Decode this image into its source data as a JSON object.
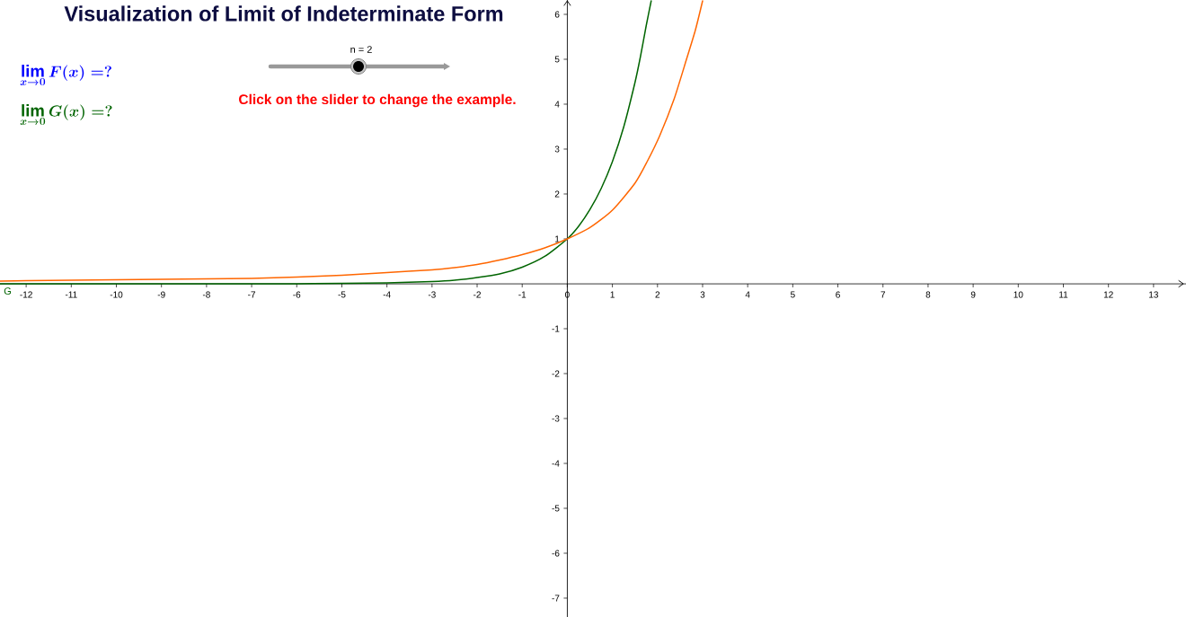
{
  "chart_data": {
    "type": "line",
    "title": "Visualization of Limit of Indeterminate Form",
    "annotations": [
      "\\lim_{x\\to 0} F(x) = ?",
      "\\lim_{x\\to 0} G(x) = ?",
      "n = 2",
      "Click on the slider to change the example."
    ],
    "xlim": [
      -12.58,
      13.72
    ],
    "ylim": [
      -7.42,
      6.32
    ],
    "xticks": [
      -12,
      -11,
      -10,
      -9,
      -8,
      -7,
      -6,
      -5,
      -4,
      -3,
      -2,
      -1,
      0,
      1,
      2,
      3,
      4,
      5,
      6,
      7,
      8,
      9,
      10,
      11,
      12,
      13
    ],
    "yticks": [
      -7,
      -6,
      -5,
      -4,
      -3,
      -2,
      -1,
      1,
      2,
      3,
      4,
      5,
      6
    ],
    "marker": "none",
    "line_style": "solid",
    "series": [
      {
        "name": "G",
        "color": "#006400",
        "x": [
          -12.58,
          -8,
          -6,
          -5,
          -4,
          -3,
          -2.5,
          -2,
          -1.5,
          -1,
          -0.5,
          0,
          0.25,
          0.5,
          0.75,
          1,
          1.25,
          1.5,
          1.62,
          1.75,
          1.86
        ],
        "values": [
          0,
          0,
          0,
          0.01,
          0.02,
          0.05,
          0.08,
          0.14,
          0.22,
          0.37,
          0.61,
          1,
          1.28,
          1.65,
          2.12,
          2.72,
          3.49,
          4.48,
          5.05,
          5.75,
          6.3
        ]
      },
      {
        "color": "#ff6600",
        "x": [
          -12.58,
          -12,
          -11,
          -10,
          -9,
          -8,
          -7,
          -6,
          -5,
          -4,
          -3,
          -2.5,
          -2,
          -1.5,
          -1,
          -0.5,
          0,
          0.5,
          1,
          1.5,
          1.77,
          2.05,
          2.37,
          2.64,
          2.84,
          3
        ],
        "values": [
          0.06,
          0.07,
          0.08,
          0.09,
          0.1,
          0.11,
          0.12,
          0.15,
          0.19,
          0.25,
          0.31,
          0.36,
          0.43,
          0.53,
          0.65,
          0.8,
          1,
          1.25,
          1.64,
          2.24,
          2.72,
          3.3,
          4.12,
          4.99,
          5.65,
          6.3
        ]
      }
    ]
  }
}
